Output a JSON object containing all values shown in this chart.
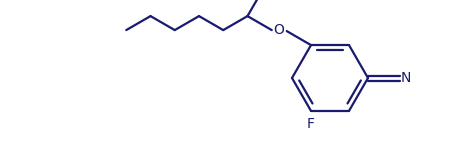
{
  "line_color": "#1a1a6e",
  "bg_color": "#ffffff",
  "label_F": "F",
  "label_O": "O",
  "label_N": "N",
  "figsize": [
    4.5,
    1.5
  ],
  "dpi": 100
}
